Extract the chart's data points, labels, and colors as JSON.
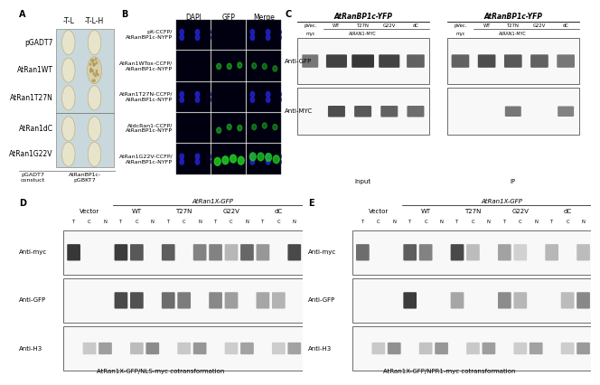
{
  "fig_width": 6.46,
  "fig_height": 4.23,
  "bg_color": "#ffffff",
  "panel_A": {
    "label": "A",
    "plate_bg": "#c8d8dc",
    "colony_color": "#e8e4cc",
    "colony_outline": "#b8a870",
    "rows": [
      "pGADT7",
      "AtRan1WT",
      "AtRan1T27N",
      "AtRan1dC",
      "AtRan1G22V"
    ],
    "cols": [
      "-T-L",
      "-T-L-H"
    ],
    "footer_left": "pGADT7\nconstuct",
    "footer_right": "AtRanBP1c-\npGBKT7",
    "has_colony_right": [
      true,
      true,
      true,
      true,
      true
    ],
    "right_colony_grown": [
      false,
      true,
      false,
      false,
      false
    ],
    "col_header_fontsize": 5.5,
    "row_label_fontsize": 5.5
  },
  "panel_B": {
    "label": "B",
    "headers": [
      "DAPI",
      "GFP",
      "Merge"
    ],
    "rows": [
      "pX-CCFP/\nAtRanBP1c-NYFP",
      "AtRan1WTox-CCFP/\nAtRanBP1c-NYFP",
      "AtRan1T27N-CCFP/\nAtRanBP1c-NYFP",
      "AtdcRan1-CCFP/\nAtRanBP1c-NYFP",
      "AtRan1G22V-CCFP/\nAtRanBP1c-NYFP"
    ],
    "cell_bg": "#000010",
    "dapi_color": "#2222cc",
    "gfp_color": "#22cc22",
    "has_dapi": [
      true,
      false,
      true,
      false,
      true
    ],
    "has_gfp": [
      false,
      true,
      false,
      true,
      true
    ],
    "has_strong_gfp": [
      false,
      false,
      false,
      false,
      true
    ],
    "header_fontsize": 5.5,
    "row_fontsize": 4.5
  },
  "panel_C": {
    "label": "C",
    "title_left": "AtRanBP1c-YFP",
    "title_right": "AtRanBP1c-YFP",
    "col_headers": [
      "pVec.",
      "WT",
      "T27N",
      "G22V",
      "dC"
    ],
    "sub_header_myc": "myc",
    "sub_header_atran": "AtRAN1-MYC",
    "row_labels": [
      "Anti-GFP",
      "Anti-MYC"
    ],
    "footer_left": "Input",
    "footer_right": "IP",
    "fontsize": 5.0
  },
  "panel_D": {
    "label": "D",
    "title": "AtRan1X-GFP",
    "col_groups": [
      "Vector",
      "WT",
      "T27N",
      "G22V",
      "dC"
    ],
    "sub_cols": [
      "T",
      "C",
      "N"
    ],
    "row_labels": [
      "Anti-myc",
      "Anti-GFP",
      "Anti-H3"
    ],
    "footer": "AtRan1X-GFP/NLS-myc cotransformation",
    "fontsize": 5.0
  },
  "panel_E": {
    "label": "E",
    "title": "AtRan1X-GFP",
    "col_groups": [
      "Vector",
      "WT",
      "T27N",
      "G22V",
      "dC"
    ],
    "sub_cols": [
      "T",
      "C",
      "N"
    ],
    "row_labels": [
      "Anti-myc",
      "Anti-GFP",
      "Anti-H3"
    ],
    "footer": "AtRan1X-GFP/NPR1-myc cotransformation",
    "fontsize": 5.0
  }
}
